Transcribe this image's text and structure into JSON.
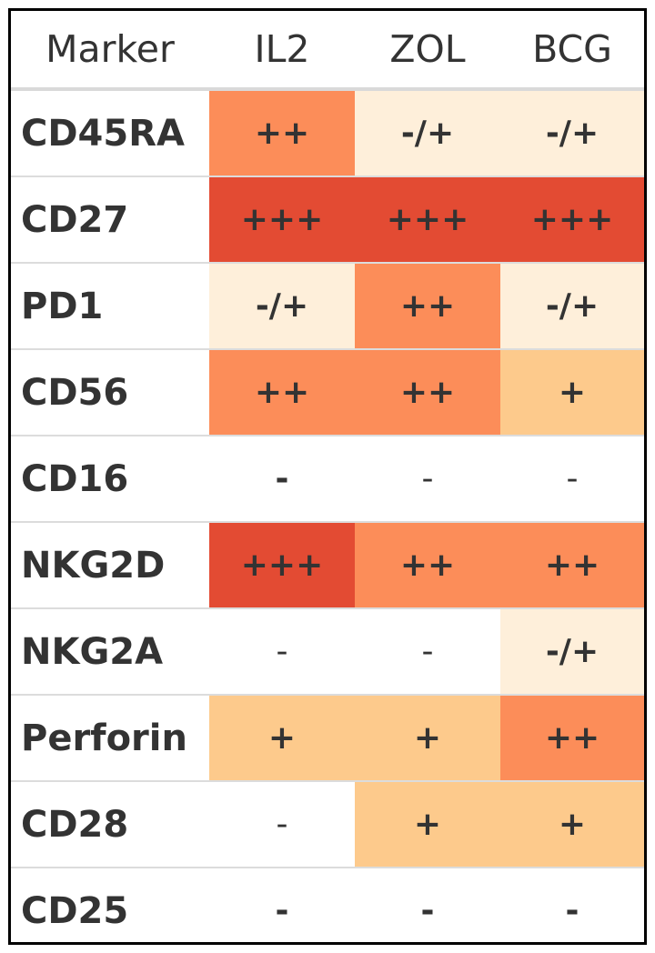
{
  "chart_data": {
    "type": "table",
    "title": "",
    "columns": [
      "Marker",
      "IL2",
      "ZOL",
      "BCG"
    ],
    "rows": [
      {
        "marker": "CD45RA",
        "values": [
          "++",
          "-/+",
          "-/+"
        ],
        "levels": [
          3,
          1,
          1
        ]
      },
      {
        "marker": "CD27",
        "values": [
          "+++",
          "+++",
          "+++"
        ],
        "levels": [
          4,
          4,
          4
        ]
      },
      {
        "marker": "PD1",
        "values": [
          "-/+",
          "++",
          "-/+"
        ],
        "levels": [
          1,
          3,
          1
        ]
      },
      {
        "marker": "CD56",
        "values": [
          "++",
          "++",
          "+"
        ],
        "levels": [
          3,
          3,
          2
        ]
      },
      {
        "marker": "CD16",
        "values": [
          "-",
          "-",
          "-"
        ],
        "levels": [
          0,
          0,
          0
        ],
        "weights": [
          "bold",
          "normal",
          "normal"
        ]
      },
      {
        "marker": "NKG2D",
        "values": [
          "+++",
          "++",
          "++"
        ],
        "levels": [
          4,
          3,
          3
        ]
      },
      {
        "marker": "NKG2A",
        "values": [
          "-",
          "-",
          "-/+"
        ],
        "levels": [
          0,
          0,
          1
        ],
        "weights": [
          "normal",
          "normal",
          "bold"
        ]
      },
      {
        "marker": "Perforin",
        "values": [
          "+",
          "+",
          "++"
        ],
        "levels": [
          2,
          2,
          3
        ]
      },
      {
        "marker": "CD28",
        "values": [
          "-",
          "+",
          "+"
        ],
        "levels": [
          0,
          2,
          2
        ],
        "weights": [
          "normal",
          "bold",
          "bold"
        ]
      },
      {
        "marker": "CD25",
        "values": [
          "-",
          "-",
          "-"
        ],
        "levels": [
          0,
          0,
          0
        ]
      }
    ],
    "color_scale": [
      "#ffffff",
      "#feefda",
      "#fdca8c",
      "#fc8d59",
      "#e34b33"
    ]
  }
}
